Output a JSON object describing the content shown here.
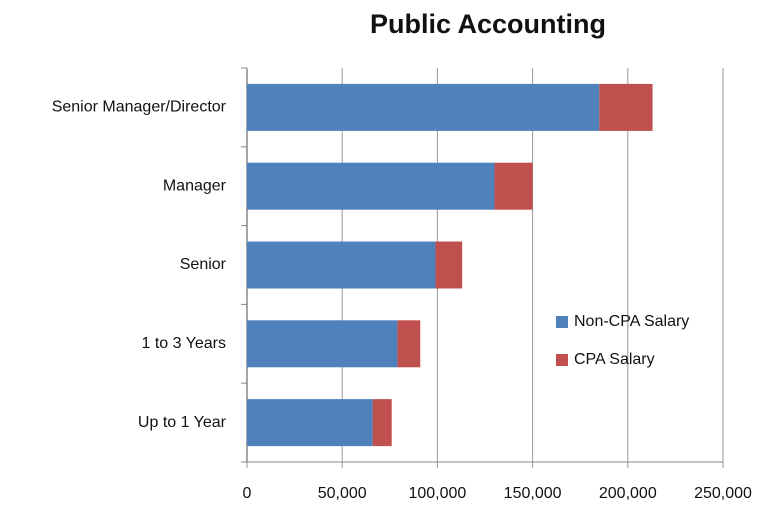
{
  "chart_data": {
    "type": "stacked_bar_horizontal",
    "title": "Public Accounting",
    "categories": [
      "Senior Manager/Director",
      "Manager",
      "Senior",
      "1 to 3 Years",
      "Up to 1 Year"
    ],
    "series": [
      {
        "name": "Non-CPA Salary",
        "color": "#4f81bd",
        "values": [
          185000,
          130000,
          99000,
          79000,
          66000
        ]
      },
      {
        "name": "CPA Salary",
        "color": "#c0504d",
        "values": [
          28000,
          20000,
          14000,
          12000,
          10000
        ]
      }
    ],
    "xlim": [
      0,
      250000
    ],
    "xticks": [
      0,
      {
        "value": 50000,
        "label": "50,000"
      },
      {
        "value": 100000,
        "label": "100,000"
      },
      {
        "value": 150000,
        "label": "150,000"
      },
      {
        "value": 200000,
        "label": "200,000"
      },
      {
        "value": 250000,
        "label": "250,000"
      }
    ],
    "grid": true
  }
}
